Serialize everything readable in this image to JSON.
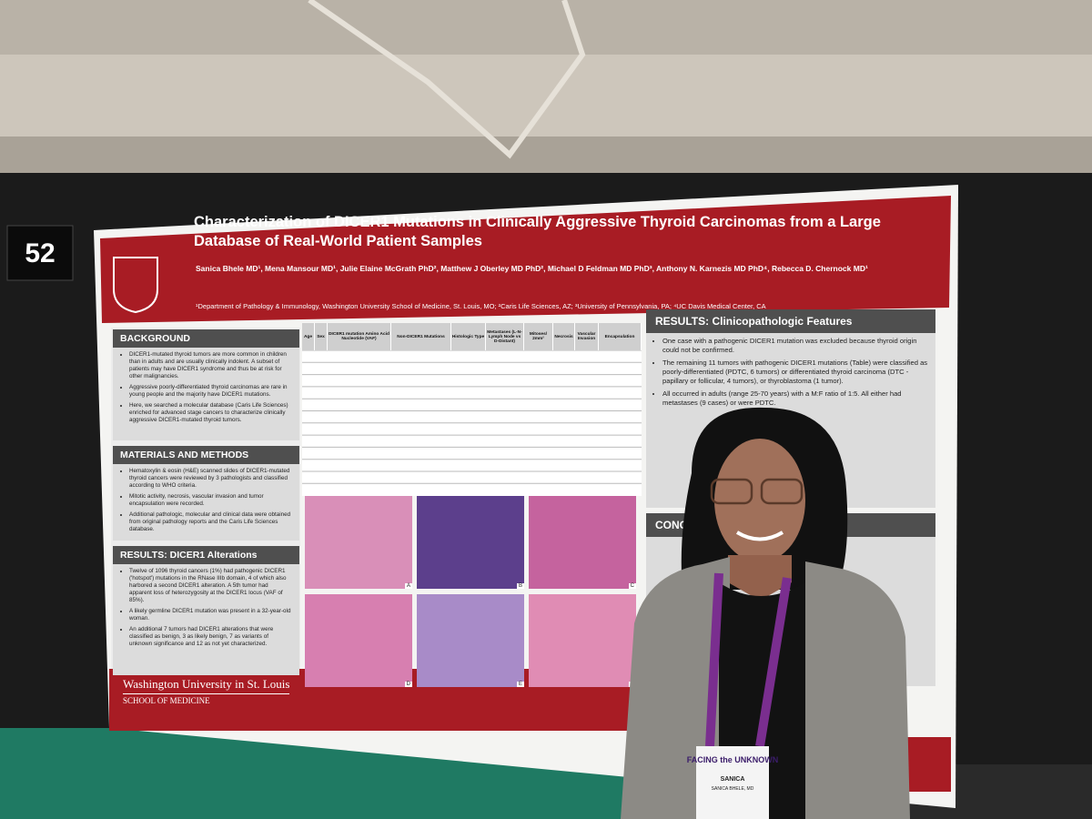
{
  "board_number": "52",
  "poster": {
    "title": "Characterization of DICER1 Mutations in Clinically Aggressive Thyroid Carcinomas from a Large Database of Real-World Patient Samples",
    "authors": "Sanica Bhele MD¹, Mena Mansour MD¹, Julie Elaine McGrath PhD², Matthew J Oberley MD PhD², Michael D Feldman MD PhD³, Anthony N. Karnezis MD PhD⁴, Rebecca D. Chernock MD¹",
    "affiliations": "¹Department of Pathology & Immunology, Washington University School of Medicine, St. Louis, MO; ²Caris Life Sciences, AZ; ³University of Pennsylvania, PA; ⁴UC Davis Medical Center, CA",
    "left_sections": [
      {
        "heading": "BACKGROUND",
        "bullets": [
          "DICER1-mutated thyroid tumors are more common in children than in adults and are usually clinically indolent. A subset of patients may have DICER1 syndrome and thus be at risk for other malignancies.",
          "Aggressive poorly-differentiated thyroid carcinomas are rare in young people and the majority have DICER1 mutations.",
          "Here, we searched a molecular database (Caris Life Sciences) enriched for advanced stage cancers to characterize clinically aggressive DICER1-mutated thyroid tumors."
        ]
      },
      {
        "heading": "MATERIALS AND METHODS",
        "bullets": [
          "Hematoxylin & eosin (H&E) scanned slides of DICER1-mutated thyroid cancers were reviewed by 3 pathologists and classified according to WHO criteria.",
          "Mitotic activity, necrosis, vascular invasion and tumor encapsulation were recorded.",
          "Additional pathologic, molecular and clinical data were obtained from original pathology reports and the Caris Life Sciences database."
        ]
      },
      {
        "heading": "RESULTS: DICER1 Alterations",
        "bullets": [
          "Twelve of 1096 thyroid cancers (1%) had pathogenic DICER1 ('hotspot') mutations in the RNase IIIb domain, 4 of which also harbored a second DICER1 alteration. A 5th tumor had apparent loss of heterozygosity at the DICER1 locus (VAF of 85%).",
          "A likely germline DICER1 mutation was present in a 32-year-old woman.",
          "An additional 7 tumors had DICER1 alterations that were classified as benign, 3 as likely benign, 7 as variants of unknown significance and 12 as not yet characterized."
        ]
      }
    ],
    "table": {
      "headers": [
        "Age",
        "Sex",
        "DICER1 mutation Amino Acid Nucleotide (VAF)",
        "Non-DICER1 Mutations",
        "Histologic Type",
        "Metastases (L-N-Lymph Node vs D-Distant)",
        "Mitoses/ 2mm²",
        "Necrosis",
        "Vascular Invasion",
        "Encapsulation"
      ]
    },
    "figure": {
      "panels": [
        "A",
        "B",
        "C",
        "D",
        "E",
        "F"
      ]
    },
    "right_sections": [
      {
        "heading": "RESULTS: Clinicopathologic Features",
        "bullets": [
          "One case with a pathogenic DICER1 mutation was excluded because thyroid origin could not be confirmed.",
          "The remaining 11 tumors with pathogenic DICER1 mutations (Table) were classified as poorly-differentiated (PDTC, 6 tumors) or differentiated thyroid carcinoma (DTC - papillary or follicular, 4 tumors), or thyroblastoma (1 tumor).",
          "All occurred in adults (range 25-70 years) with a M:F ratio of 1:5. All either had metastases (9 cases) or were PDTC."
        ]
      },
      {
        "heading": "CONC",
        "bullets": []
      }
    ],
    "footer": {
      "university": "Washington University in St. Louis",
      "school": "SCHOOL OF MEDICINE"
    }
  },
  "badge": {
    "event": "FACING the UNKNOWN",
    "first_name": "SANICA",
    "full_name": "SANICA BHELE, MD"
  }
}
